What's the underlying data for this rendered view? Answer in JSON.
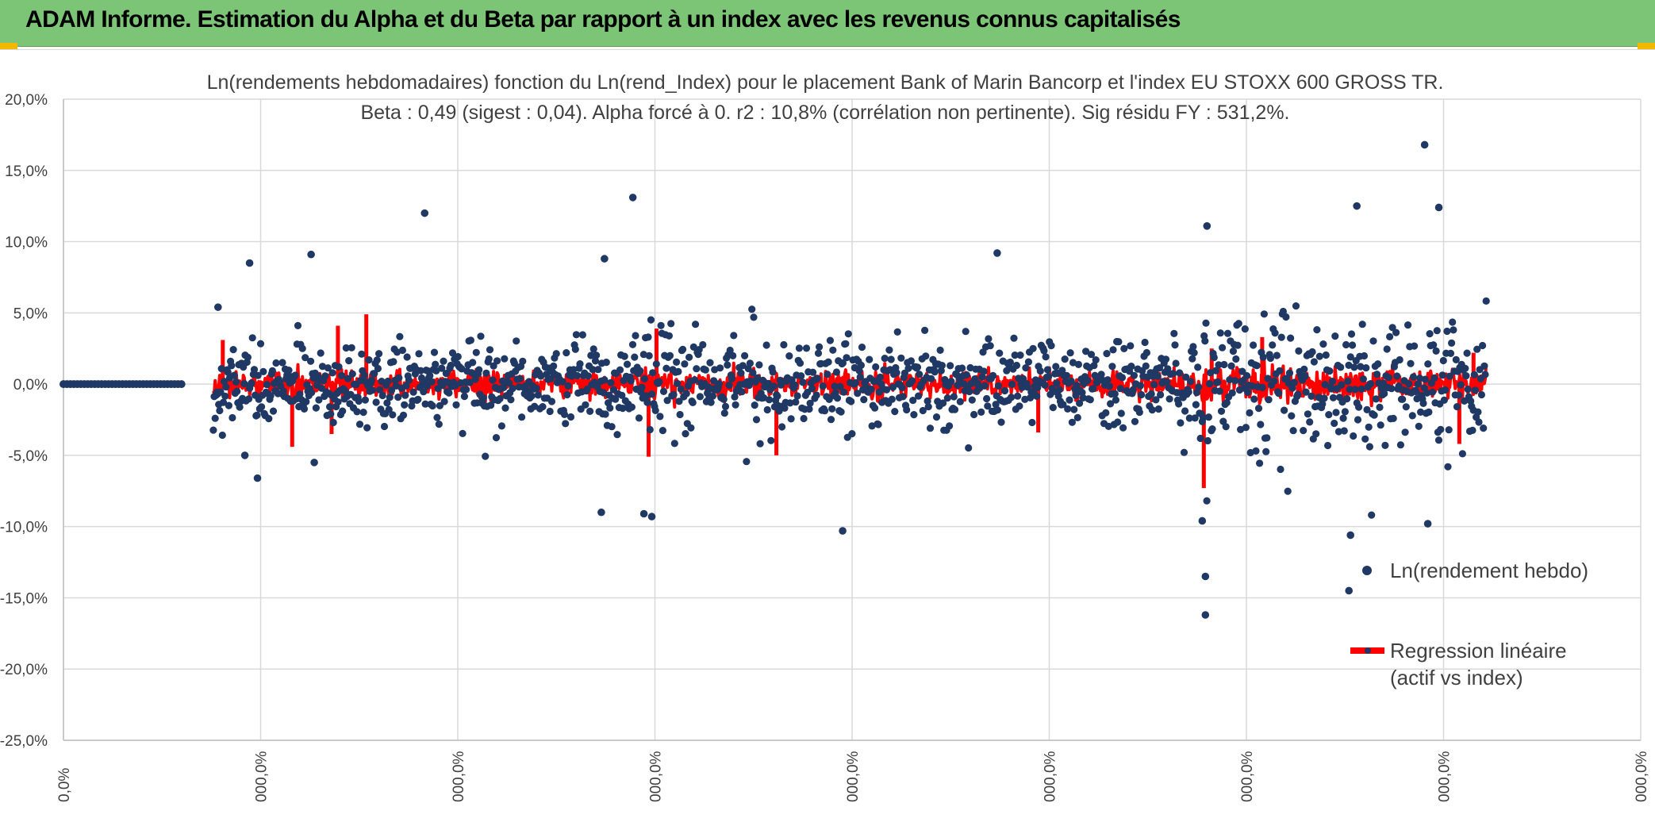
{
  "header": {
    "title": "ADAM Informe. Estimation du Alpha et du Beta par rapport à un index avec les revenus connus capitalisés",
    "bg_color": "#7cc576",
    "accent_color": "#f2b800"
  },
  "chart_data": {
    "type": "scatter",
    "title": "Ln(rendements hebdomadaires) fonction du Ln(rend_Index) pour le placement Bank of Marin Bancorp et l'index EU STOXX 600 GROSS TR.",
    "subtitle": "Beta : 0,49 (sigest : 0,04). Alpha forcé à 0. r2 : 10,8% (corrélation non pertinente). Sig résidu FY : 531,2%.",
    "xlabel": "",
    "ylabel": "",
    "ylim": [
      -25,
      20
    ],
    "yticks": [
      "20,0%",
      "15,0%",
      "10,0%",
      "5,0%",
      "0,0%",
      "-5,0%",
      "-10,0%",
      "-15,0%",
      "-20,0%",
      "-25,0%"
    ],
    "xticks": [
      "0,0%",
      "000,0%",
      "000,0%",
      "000,0%",
      "000,0%",
      "000,0%",
      "000,0%",
      "000,0%",
      "000,0%"
    ],
    "grid": true,
    "legend_position": "right",
    "series": [
      {
        "name": "Ln(rendement hebdo)",
        "kind": "scatter",
        "color": "#1f3864",
        "flat_start_percent_of_axis": [
          0,
          7.5
        ],
        "flat_value": 0,
        "x_range_percent_of_axis": [
          9.5,
          90.2
        ],
        "approx_point_count": 1400,
        "outliers": [
          {
            "x_pct": 9.8,
            "y": 5.4
          },
          {
            "x_pct": 11.5,
            "y": -5.0
          },
          {
            "x_pct": 11.8,
            "y": 8.5
          },
          {
            "x_pct": 12.3,
            "y": -6.6
          },
          {
            "x_pct": 15.7,
            "y": 9.1
          },
          {
            "x_pct": 15.9,
            "y": -5.5
          },
          {
            "x_pct": 22.9,
            "y": 12.0
          },
          {
            "x_pct": 34.3,
            "y": 8.8
          },
          {
            "x_pct": 34.1,
            "y": -9.0
          },
          {
            "x_pct": 36.1,
            "y": 13.1
          },
          {
            "x_pct": 36.8,
            "y": -9.1
          },
          {
            "x_pct": 37.3,
            "y": -9.3
          },
          {
            "x_pct": 49.4,
            "y": -10.3
          },
          {
            "x_pct": 59.2,
            "y": 9.2
          },
          {
            "x_pct": 72.5,
            "y": 11.1
          },
          {
            "x_pct": 72.4,
            "y": -13.5
          },
          {
            "x_pct": 72.4,
            "y": -16.2
          },
          {
            "x_pct": 72.2,
            "y": -9.6
          },
          {
            "x_pct": 82.0,
            "y": 12.5
          },
          {
            "x_pct": 81.6,
            "y": -10.6
          },
          {
            "x_pct": 81.5,
            "y": -14.5
          },
          {
            "x_pct": 86.3,
            "y": 16.8
          },
          {
            "x_pct": 87.2,
            "y": 12.4
          },
          {
            "x_pct": 86.5,
            "y": -9.8
          }
        ]
      },
      {
        "name": "Regression linéaire (actif vs index)",
        "kind": "line",
        "color": "#ff0000",
        "beta": 0.49,
        "x_range_percent_of_axis": [
          9.5,
          90.2
        ],
        "spikes": [
          {
            "x_pct": 10.1,
            "y": 3.1
          },
          {
            "x_pct": 14.5,
            "y": -4.4
          },
          {
            "x_pct": 17.0,
            "y": -3.5
          },
          {
            "x_pct": 17.4,
            "y": 4.1
          },
          {
            "x_pct": 19.2,
            "y": 4.9
          },
          {
            "x_pct": 37.1,
            "y": -5.1
          },
          {
            "x_pct": 37.6,
            "y": 3.9
          },
          {
            "x_pct": 45.2,
            "y": -5.0
          },
          {
            "x_pct": 61.8,
            "y": -3.4
          },
          {
            "x_pct": 72.3,
            "y": -7.3
          },
          {
            "x_pct": 72.8,
            "y": 2.5
          },
          {
            "x_pct": 76.0,
            "y": 3.3
          },
          {
            "x_pct": 88.5,
            "y": -4.2
          },
          {
            "x_pct": 89.4,
            "y": 2.2
          }
        ]
      }
    ],
    "legend": [
      {
        "label": "Ln(rendement hebdo)",
        "marker": "dot"
      },
      {
        "label_line1": "Regression linéaire",
        "label_line2": "(actif vs index)",
        "marker": "line"
      }
    ]
  }
}
